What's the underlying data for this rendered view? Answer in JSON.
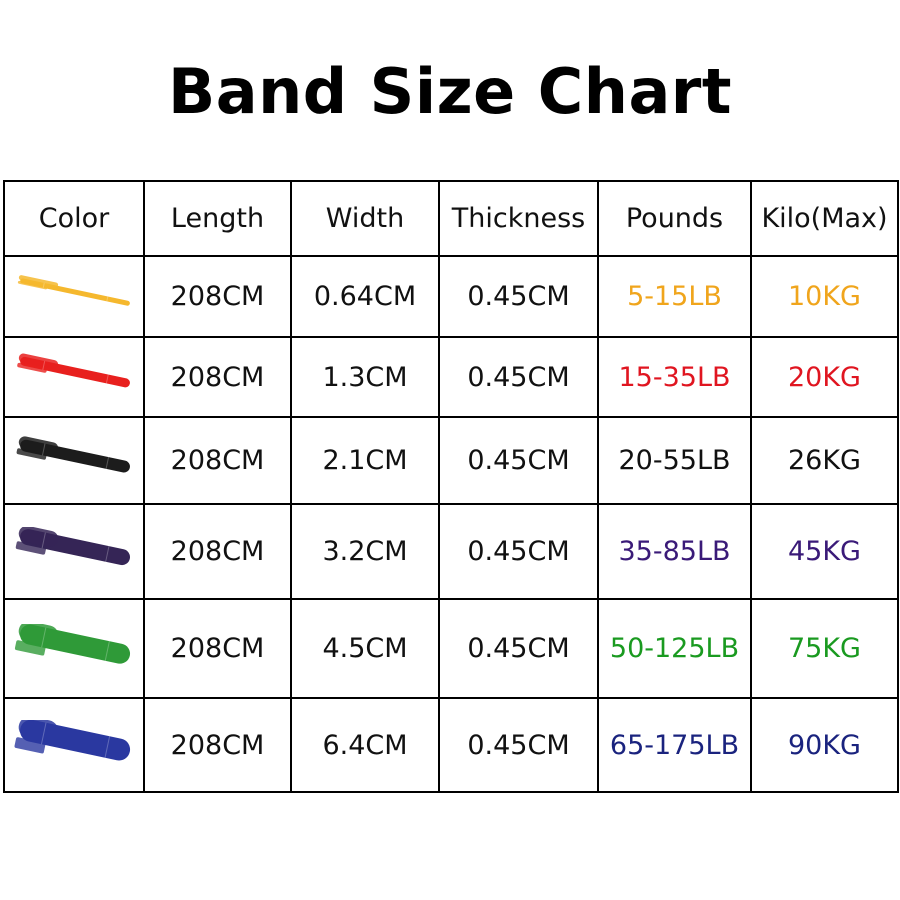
{
  "title": "Band Size Chart",
  "headers": [
    "Color",
    "Length",
    "Width",
    "Thickness",
    "Pounds",
    "Kilo(Max)"
  ],
  "rows": [
    {
      "band_color": "#f5b82e",
      "length": "208CM",
      "width": "0.64CM",
      "thickness": "0.45CM",
      "pounds": "5-15LB",
      "kilo": "10KG",
      "text_color": "#f0a51c"
    },
    {
      "band_color": "#e8201e",
      "length": "208CM",
      "width": "1.3CM",
      "thickness": "0.45CM",
      "pounds": "15-35LB",
      "kilo": "20KG",
      "text_color": "#e01520"
    },
    {
      "band_color": "#1c1c1c",
      "length": "208CM",
      "width": "2.1CM",
      "thickness": "0.45CM",
      "pounds": "20-55LB",
      "kilo": "26KG",
      "text_color": "#111111"
    },
    {
      "band_color": "#352556",
      "length": "208CM",
      "width": "3.2CM",
      "thickness": "0.45CM",
      "pounds": "35-85LB",
      "kilo": "45KG",
      "text_color": "#3a1a78"
    },
    {
      "band_color": "#2f9a38",
      "length": "208CM",
      "width": "4.5CM",
      "thickness": "0.45CM",
      "pounds": "50-125LB",
      "kilo": "75KG",
      "text_color": "#1a9a20"
    },
    {
      "band_color": "#2a38a0",
      "length": "208CM",
      "width": "6.4CM",
      "thickness": "0.45CM",
      "pounds": "65-175LB",
      "kilo": "90KG",
      "text_color": "#1a237e"
    }
  ]
}
